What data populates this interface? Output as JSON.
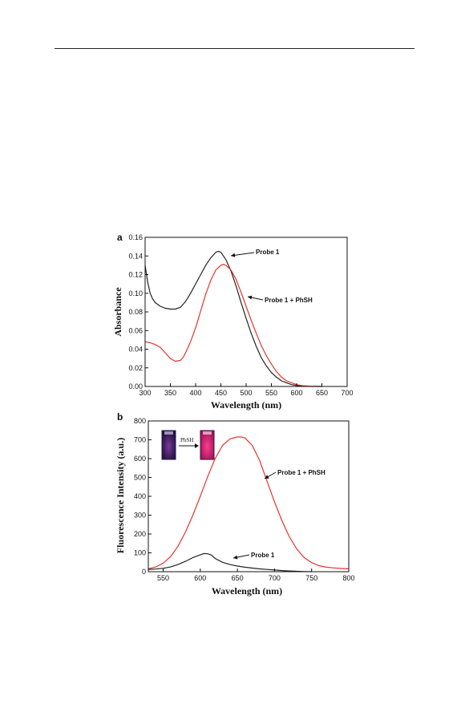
{
  "chart_data": [
    {
      "type": "line",
      "panel_label": "a",
      "title": "",
      "xlabel": "Wavelength (nm)",
      "ylabel": "Absorbance",
      "xlim": [
        300,
        700
      ],
      "ylim": [
        0,
        0.16
      ],
      "xticks": [
        300,
        350,
        400,
        450,
        500,
        550,
        600,
        650,
        700
      ],
      "yticks": [
        "0.00",
        "0.02",
        "0.04",
        "0.06",
        "0.08",
        "0.10",
        "0.12",
        "0.14",
        "0.16"
      ],
      "grid": false,
      "series": [
        {
          "name": "Probe 1",
          "color": "#222222",
          "x": [
            300,
            305,
            310,
            315,
            320,
            330,
            340,
            350,
            360,
            370,
            380,
            390,
            400,
            410,
            420,
            430,
            440,
            445,
            450,
            460,
            470,
            480,
            490,
            500,
            510,
            520,
            530,
            540,
            550,
            560,
            570,
            580,
            590,
            600,
            610,
            620,
            630,
            640,
            650
          ],
          "y": [
            0.13,
            0.112,
            0.1,
            0.094,
            0.09,
            0.086,
            0.084,
            0.083,
            0.083,
            0.085,
            0.091,
            0.1,
            0.11,
            0.12,
            0.13,
            0.138,
            0.144,
            0.145,
            0.144,
            0.136,
            0.124,
            0.108,
            0.09,
            0.073,
            0.057,
            0.043,
            0.031,
            0.022,
            0.015,
            0.01,
            0.006,
            0.004,
            0.002,
            0.001,
            0.0005,
            0.0002,
            0.0001,
            0,
            0
          ]
        },
        {
          "name": "Probe 1 + PhSH",
          "color": "#e8332e",
          "x": [
            300,
            310,
            320,
            330,
            340,
            350,
            360,
            370,
            375,
            380,
            390,
            400,
            410,
            420,
            430,
            440,
            450,
            455,
            460,
            470,
            480,
            490,
            500,
            510,
            520,
            530,
            540,
            550,
            560,
            570,
            580,
            590,
            600,
            610,
            620,
            630,
            640,
            650
          ],
          "y": [
            0.048,
            0.047,
            0.045,
            0.042,
            0.036,
            0.03,
            0.027,
            0.028,
            0.031,
            0.036,
            0.048,
            0.063,
            0.081,
            0.099,
            0.114,
            0.125,
            0.13,
            0.131,
            0.13,
            0.125,
            0.115,
            0.101,
            0.086,
            0.071,
            0.057,
            0.044,
            0.033,
            0.024,
            0.016,
            0.01,
            0.006,
            0.004,
            0.002,
            0.001,
            0.0005,
            0.0002,
            0.0001,
            0
          ]
        }
      ]
    },
    {
      "type": "line",
      "panel_label": "b",
      "title": "",
      "xlabel": "Wavelength (nm)",
      "ylabel": "Fluorescence Intensity (a.u.)",
      "xlim": [
        530,
        800
      ],
      "ylim": [
        0,
        800
      ],
      "xticks": [
        550,
        600,
        650,
        700,
        750,
        800
      ],
      "yticks": [
        "0",
        "100",
        "200",
        "300",
        "400",
        "500",
        "600",
        "700",
        "800"
      ],
      "grid": false,
      "inset_label": "PhSH",
      "series": [
        {
          "name": "Probe 1 + PhSH",
          "color": "#e8332e",
          "x": [
            530,
            540,
            550,
            560,
            570,
            580,
            590,
            600,
            610,
            620,
            630,
            640,
            650,
            655,
            660,
            670,
            680,
            690,
            700,
            710,
            720,
            730,
            740,
            750,
            760,
            770,
            780,
            790,
            800
          ],
          "y": [
            15,
            25,
            45,
            80,
            135,
            210,
            300,
            400,
            505,
            600,
            670,
            705,
            715,
            715,
            710,
            670,
            590,
            480,
            370,
            270,
            185,
            120,
            75,
            48,
            32,
            24,
            20,
            17,
            15
          ]
        },
        {
          "name": "Probe 1",
          "color": "#222222",
          "x": [
            530,
            540,
            550,
            560,
            570,
            580,
            590,
            600,
            605,
            610,
            615,
            620,
            630,
            640,
            650,
            660,
            670,
            680,
            690,
            700,
            710,
            720,
            730,
            740,
            750
          ],
          "y": [
            12,
            14,
            18,
            25,
            38,
            55,
            75,
            90,
            96,
            95,
            88,
            70,
            50,
            38,
            30,
            24,
            19,
            15,
            12,
            9,
            6,
            4,
            2,
            1,
            0
          ]
        }
      ]
    }
  ]
}
